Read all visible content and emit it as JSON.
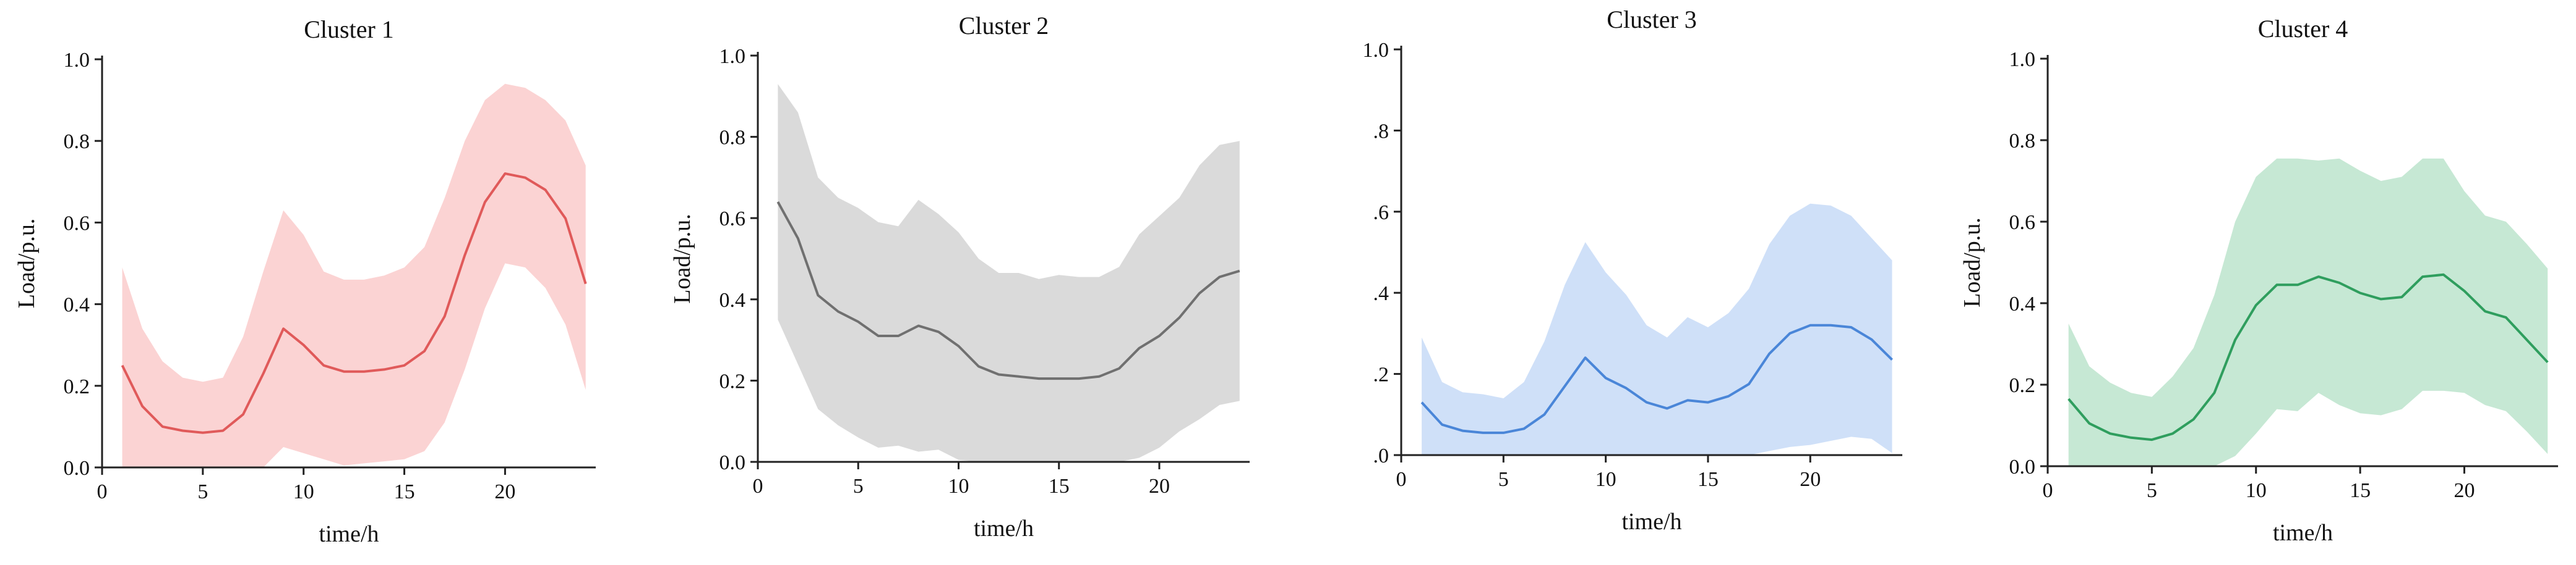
{
  "chart_data": [
    {
      "type": "area",
      "title": "Cluster 1",
      "xlabel": "time/h",
      "ylabel": "Load/p.u.",
      "xlim": [
        0,
        24.5
      ],
      "ylim": [
        0,
        1.0
      ],
      "xticks": [
        0,
        5,
        10,
        15,
        20
      ],
      "yticks": [
        0.0,
        0.2,
        0.4,
        0.6,
        0.8,
        1.0
      ],
      "xtick_labels": [
        "0",
        "5",
        "10",
        "15",
        "20"
      ],
      "ytick_labels": [
        "0.0",
        "0.2",
        "0.4",
        "0.6",
        "0.8",
        "1.0"
      ],
      "grid": false,
      "colors": {
        "line": "#e05a5a",
        "band": "#fbd3d3"
      },
      "x": [
        1,
        2,
        3,
        4,
        5,
        6,
        7,
        8,
        9,
        10,
        11,
        12,
        13,
        14,
        15,
        16,
        17,
        18,
        19,
        20,
        21,
        22,
        23,
        24
      ],
      "series": [
        {
          "role": "mean",
          "values": [
            0.25,
            0.15,
            0.1,
            0.09,
            0.085,
            0.09,
            0.13,
            0.23,
            0.34,
            0.3,
            0.25,
            0.235,
            0.235,
            0.24,
            0.25,
            0.285,
            0.37,
            0.52,
            0.65,
            0.72,
            0.71,
            0.68,
            0.61,
            0.45
          ]
        },
        {
          "role": "upper",
          "values": [
            0.49,
            0.34,
            0.26,
            0.22,
            0.21,
            0.22,
            0.32,
            0.48,
            0.63,
            0.57,
            0.48,
            0.46,
            0.46,
            0.47,
            0.49,
            0.54,
            0.66,
            0.8,
            0.9,
            0.94,
            0.93,
            0.9,
            0.85,
            0.74
          ]
        },
        {
          "role": "lower",
          "values": [
            0,
            0,
            0,
            0,
            0,
            0,
            0,
            0,
            0.05,
            0.035,
            0.02,
            0.005,
            0.01,
            0.015,
            0.02,
            0.04,
            0.11,
            0.24,
            0.39,
            0.5,
            0.49,
            0.44,
            0.35,
            0.19
          ]
        }
      ]
    },
    {
      "type": "area",
      "title": "Cluster 2",
      "xlabel": "time/h",
      "ylabel": "Load/p.u.",
      "xlim": [
        0,
        24.5
      ],
      "ylim": [
        0,
        1.0
      ],
      "xticks": [
        0,
        5,
        10,
        15,
        20
      ],
      "yticks": [
        0.0,
        0.2,
        0.4,
        0.6,
        0.8,
        1.0
      ],
      "xtick_labels": [
        "0",
        "5",
        "10",
        "15",
        "20"
      ],
      "ytick_labels": [
        "0.0",
        "0.2",
        "0.4",
        "0.6",
        "0.8",
        "1.0"
      ],
      "grid": false,
      "colors": {
        "line": "#707070",
        "band": "#dadada"
      },
      "x": [
        1,
        2,
        3,
        4,
        5,
        6,
        7,
        8,
        9,
        10,
        11,
        12,
        13,
        14,
        15,
        16,
        17,
        18,
        19,
        20,
        21,
        22,
        23,
        24
      ],
      "series": [
        {
          "role": "mean",
          "values": [
            0.64,
            0.55,
            0.41,
            0.37,
            0.345,
            0.31,
            0.31,
            0.335,
            0.32,
            0.285,
            0.235,
            0.215,
            0.21,
            0.205,
            0.205,
            0.205,
            0.21,
            0.23,
            0.28,
            0.31,
            0.355,
            0.415,
            0.455,
            0.47
          ]
        },
        {
          "role": "upper",
          "values": [
            0.93,
            0.86,
            0.7,
            0.65,
            0.625,
            0.59,
            0.58,
            0.645,
            0.61,
            0.565,
            0.5,
            0.465,
            0.465,
            0.45,
            0.46,
            0.455,
            0.455,
            0.48,
            0.56,
            0.605,
            0.65,
            0.73,
            0.78,
            0.79
          ]
        },
        {
          "role": "lower",
          "values": [
            0.35,
            0.24,
            0.13,
            0.09,
            0.06,
            0.035,
            0.04,
            0.025,
            0.03,
            0.005,
            0,
            0,
            0,
            0,
            0,
            0,
            0,
            0,
            0.01,
            0.035,
            0.075,
            0.105,
            0.14,
            0.15
          ]
        }
      ]
    },
    {
      "type": "area",
      "title": "Cluster 3",
      "xlabel": "time/h",
      "ylabel": "",
      "xlim": [
        0,
        24.5
      ],
      "ylim": [
        0,
        1.0
      ],
      "xticks": [
        0,
        5,
        10,
        15,
        20
      ],
      "yticks": [
        0.0,
        0.2,
        0.4,
        0.6,
        0.8,
        1.0
      ],
      "xtick_labels": [
        "0",
        "5",
        "10",
        "15",
        "20"
      ],
      "ytick_labels": [
        ".0",
        ".2",
        ".4",
        ".6",
        ".8",
        "1.0"
      ],
      "grid": false,
      "colors": {
        "line": "#4a86d8",
        "band": "#cfe0f8"
      },
      "x": [
        1,
        2,
        3,
        4,
        5,
        6,
        7,
        8,
        9,
        10,
        11,
        12,
        13,
        14,
        15,
        16,
        17,
        18,
        19,
        20,
        21,
        22,
        23,
        24
      ],
      "series": [
        {
          "role": "mean",
          "values": [
            0.13,
            0.075,
            0.06,
            0.055,
            0.055,
            0.065,
            0.1,
            0.17,
            0.24,
            0.19,
            0.165,
            0.13,
            0.115,
            0.135,
            0.13,
            0.145,
            0.175,
            0.25,
            0.3,
            0.32,
            0.32,
            0.315,
            0.285,
            0.235
          ]
        },
        {
          "role": "upper",
          "values": [
            0.29,
            0.18,
            0.155,
            0.15,
            0.14,
            0.18,
            0.28,
            0.42,
            0.525,
            0.45,
            0.395,
            0.32,
            0.29,
            0.34,
            0.315,
            0.35,
            0.41,
            0.52,
            0.59,
            0.62,
            0.615,
            0.59,
            0.535,
            0.48
          ]
        },
        {
          "role": "lower",
          "values": [
            0,
            0,
            0,
            0,
            0,
            0,
            0,
            0,
            0,
            0,
            0,
            0,
            0,
            0,
            0,
            0,
            0,
            0.01,
            0.02,
            0.025,
            0.035,
            0.045,
            0.04,
            0.005
          ]
        }
      ]
    },
    {
      "type": "area",
      "title": "Cluster 4",
      "xlabel": "time/h",
      "ylabel": "Load/p.u.",
      "xlim": [
        0,
        24.5
      ],
      "ylim": [
        0,
        1.0
      ],
      "xticks": [
        0,
        5,
        10,
        15,
        20
      ],
      "yticks": [
        0.0,
        0.2,
        0.4,
        0.6,
        0.8,
        1.0
      ],
      "xtick_labels": [
        "0",
        "5",
        "10",
        "15",
        "20"
      ],
      "ytick_labels": [
        "0.0",
        "0.2",
        "0.4",
        "0.6",
        "0.8",
        "1.0"
      ],
      "grid": false,
      "colors": {
        "line": "#2f9e5e",
        "band": "#c6e8d4"
      },
      "x": [
        1,
        2,
        3,
        4,
        5,
        6,
        7,
        8,
        9,
        10,
        11,
        12,
        13,
        14,
        15,
        16,
        17,
        18,
        19,
        20,
        21,
        22,
        23,
        24
      ],
      "series": [
        {
          "role": "mean",
          "values": [
            0.165,
            0.105,
            0.08,
            0.07,
            0.065,
            0.08,
            0.115,
            0.18,
            0.31,
            0.395,
            0.445,
            0.445,
            0.465,
            0.45,
            0.425,
            0.41,
            0.415,
            0.465,
            0.47,
            0.43,
            0.38,
            0.365,
            0.31,
            0.255
          ]
        },
        {
          "role": "upper",
          "values": [
            0.35,
            0.245,
            0.205,
            0.18,
            0.17,
            0.22,
            0.29,
            0.42,
            0.6,
            0.71,
            0.755,
            0.755,
            0.75,
            0.755,
            0.725,
            0.7,
            0.71,
            0.755,
            0.755,
            0.675,
            0.615,
            0.6,
            0.545,
            0.485
          ]
        },
        {
          "role": "lower",
          "values": [
            0,
            0,
            0,
            0,
            0,
            0,
            0,
            0,
            0.025,
            0.08,
            0.14,
            0.135,
            0.18,
            0.15,
            0.13,
            0.125,
            0.14,
            0.185,
            0.185,
            0.18,
            0.15,
            0.135,
            0.085,
            0.03
          ]
        }
      ]
    }
  ]
}
